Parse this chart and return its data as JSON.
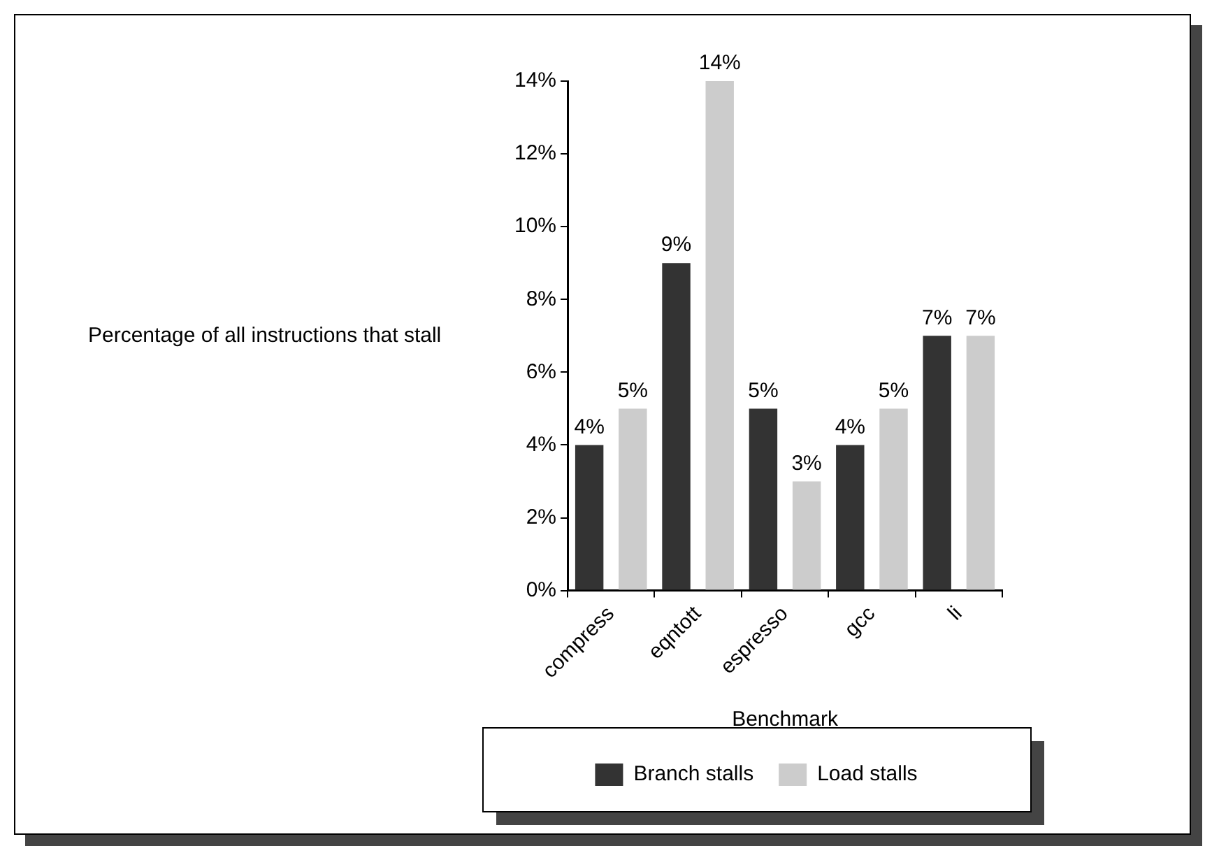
{
  "chart_data": {
    "type": "bar",
    "xlabel": "Benchmark",
    "ylabel": "Percentage of all instructions that stall",
    "categories": [
      "compress",
      "eqntott",
      "espresso",
      "gcc",
      "li"
    ],
    "series": [
      {
        "name": "Branch stalls",
        "color": "#333333",
        "values": [
          4,
          9,
          5,
          4,
          7
        ],
        "value_labels": [
          "4%",
          "9%",
          "5%",
          "4%",
          "7%"
        ]
      },
      {
        "name": "Load stalls",
        "color": "#cccccc",
        "values": [
          5,
          14,
          3,
          5,
          7
        ],
        "value_labels": [
          "5%",
          "14%",
          "3%",
          "5%",
          "7%"
        ]
      }
    ],
    "ylim": [
      0,
      14
    ],
    "yticks": [
      {
        "value": 0,
        "label": "0%"
      },
      {
        "value": 2,
        "label": "2%"
      },
      {
        "value": 4,
        "label": "4%"
      },
      {
        "value": 6,
        "label": "6%"
      },
      {
        "value": 8,
        "label": "8%"
      },
      {
        "value": 10,
        "label": "10%"
      },
      {
        "value": 12,
        "label": "12%"
      },
      {
        "value": 14,
        "label": "14%"
      }
    ],
    "grid": false,
    "legend": "bottom"
  }
}
